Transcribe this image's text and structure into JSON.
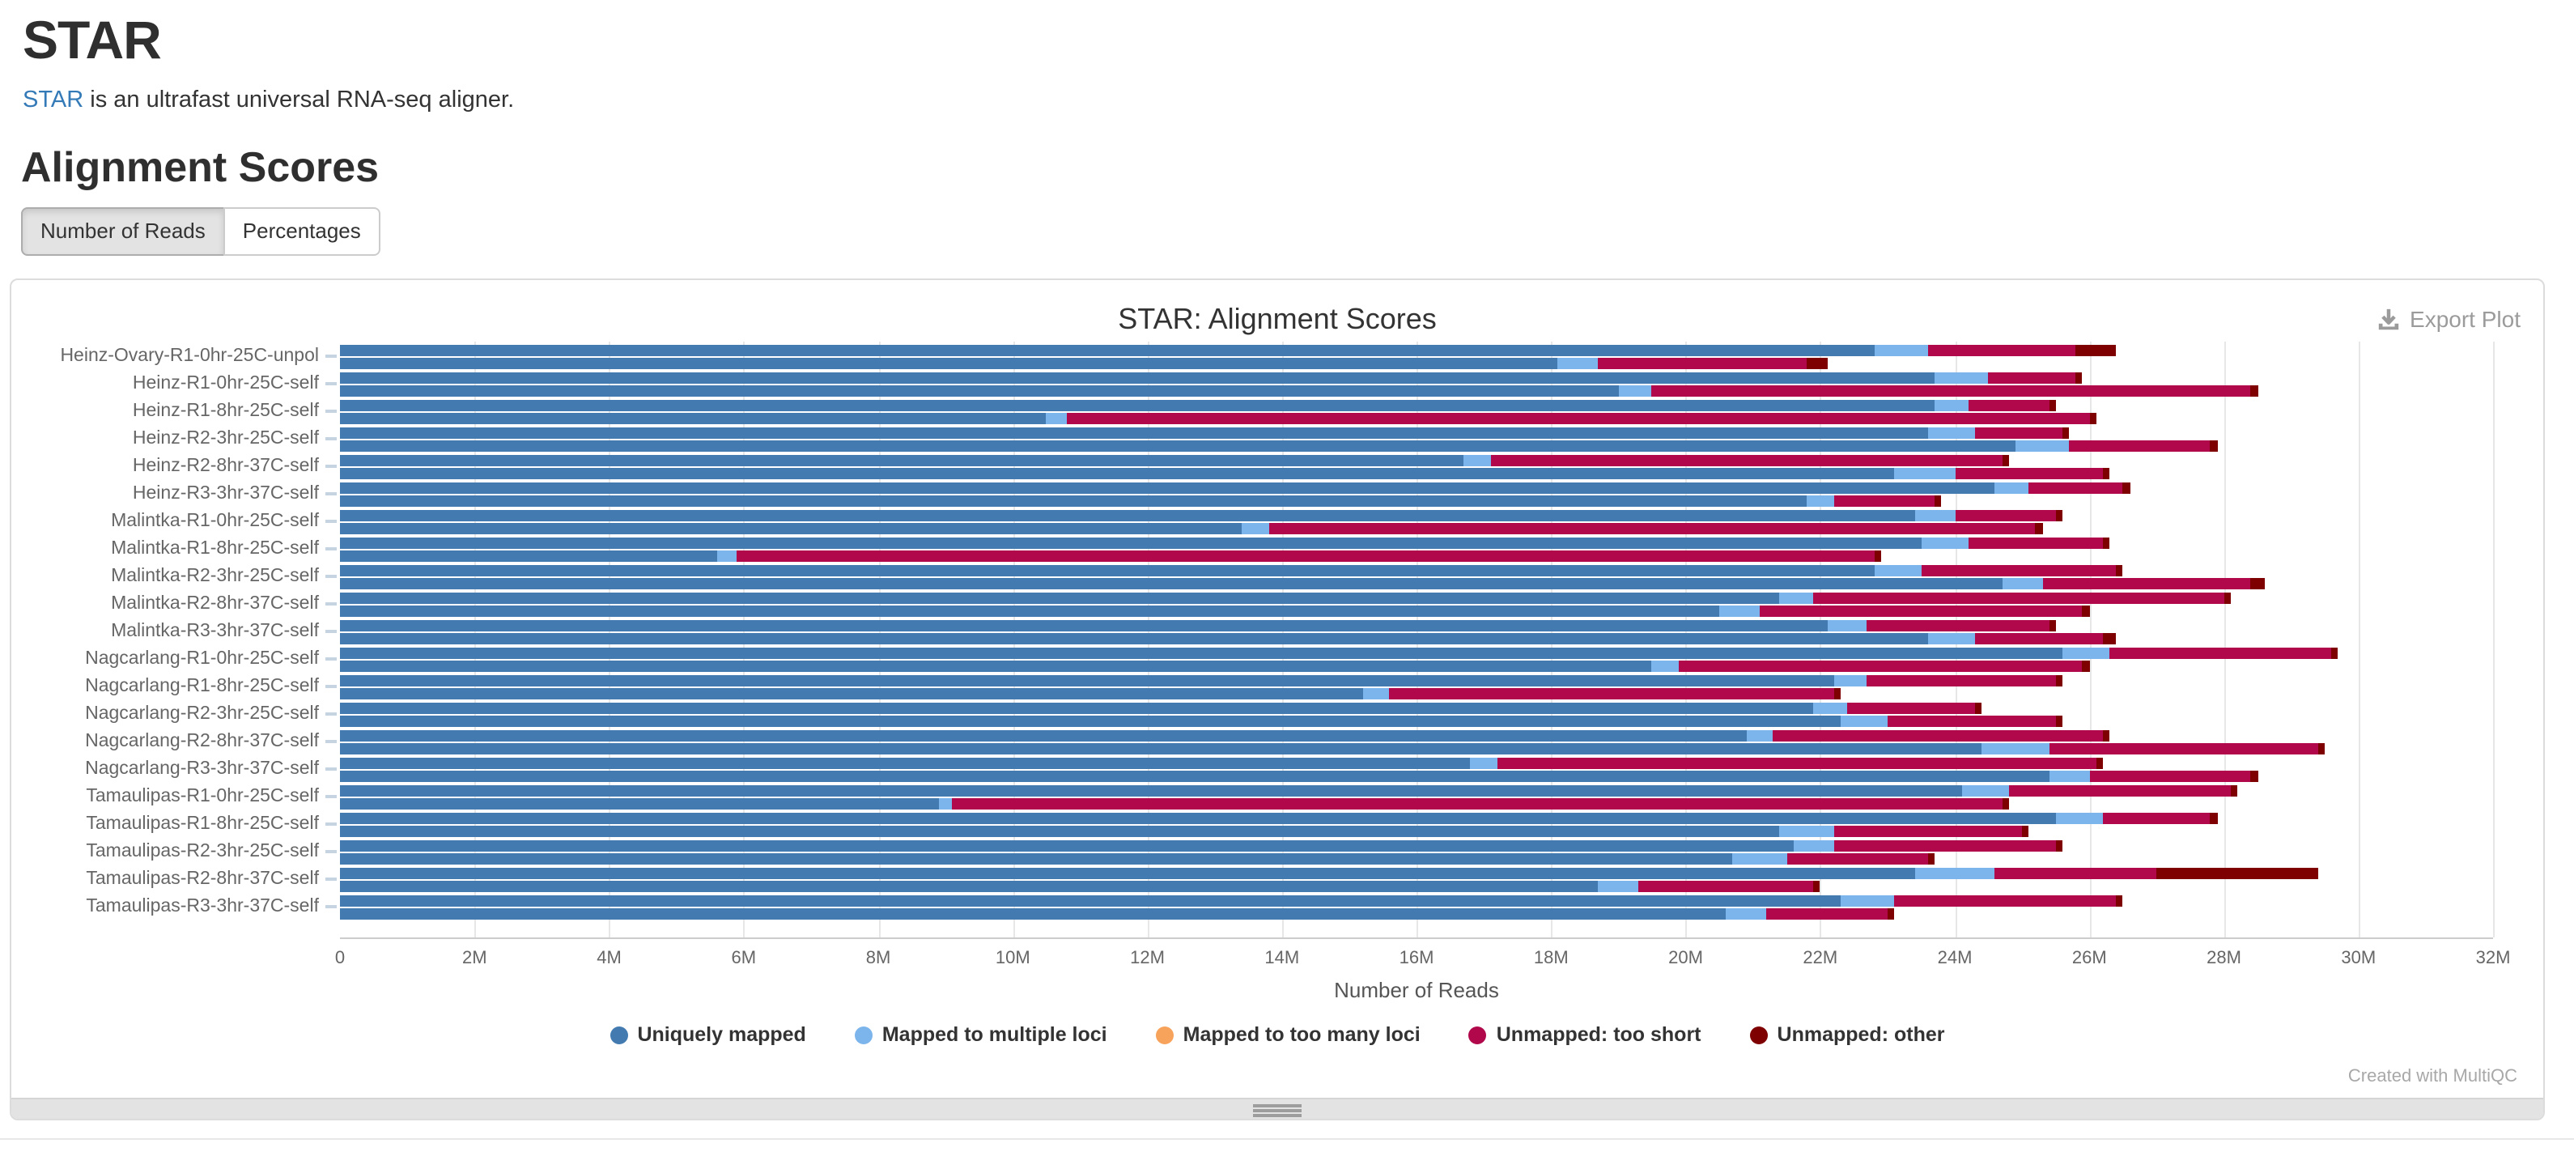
{
  "page": {
    "h1": "STAR",
    "intro_link_text": "STAR",
    "intro_rest": " is an ultrafast universal RNA-seq aligner.",
    "section_title": "Alignment Scores",
    "buttons": {
      "number_of_reads": "Number of Reads",
      "percentages": "Percentages",
      "active": "Number of Reads"
    }
  },
  "plot": {
    "title": "STAR: Alignment Scores",
    "export_label": "Export Plot",
    "watermark": "Created with MultiQC",
    "xlabel": "Number of Reads"
  },
  "chart_data": {
    "type": "bar",
    "orientation": "horizontal",
    "stacked": true,
    "bars_per_category": 2,
    "title": "STAR: Alignment Scores",
    "xlabel": "Number of Reads",
    "x_unit": "millions of reads",
    "xlim": [
      0,
      32
    ],
    "grid": true,
    "legend_position": "bottom",
    "x_tick_values": [
      0,
      2,
      4,
      6,
      8,
      10,
      12,
      14,
      16,
      18,
      20,
      22,
      24,
      26,
      28,
      30,
      32
    ],
    "x_tick_labels": [
      "0",
      "2M",
      "4M",
      "6M",
      "8M",
      "10M",
      "12M",
      "14M",
      "16M",
      "18M",
      "20M",
      "22M",
      "24M",
      "26M",
      "28M",
      "30M",
      "32M"
    ],
    "series_names": [
      "Uniquely mapped",
      "Mapped to multiple loci",
      "Mapped to too many loci",
      "Unmapped: too short",
      "Unmapped: other"
    ],
    "series_colors": [
      "#437bb1",
      "#7cb5ec",
      "#f7a35c",
      "#b1084c",
      "#7f0000"
    ],
    "categories": [
      "Heinz-Ovary-R1-0hr-25C-unpol",
      "Heinz-R1-0hr-25C-self",
      "Heinz-R1-8hr-25C-self",
      "Heinz-R2-3hr-25C-self",
      "Heinz-R2-8hr-37C-self",
      "Heinz-R3-3hr-37C-self",
      "Malintka-R1-0hr-25C-self",
      "Malintka-R1-8hr-25C-self",
      "Malintka-R2-3hr-25C-self",
      "Malintka-R2-8hr-37C-self",
      "Malintka-R3-3hr-37C-self",
      "Nagcarlang-R1-0hr-25C-self",
      "Nagcarlang-R1-8hr-25C-self",
      "Nagcarlang-R2-3hr-25C-self",
      "Nagcarlang-R2-8hr-37C-self",
      "Nagcarlang-R3-3hr-37C-self",
      "Tamaulipas-R1-0hr-25C-self",
      "Tamaulipas-R1-8hr-25C-self",
      "Tamaulipas-R2-3hr-25C-self",
      "Tamaulipas-R2-8hr-37C-self",
      "Tamaulipas-R3-3hr-37C-self"
    ],
    "values_millions": [
      [
        [
          22.8,
          0.8,
          0,
          2.2,
          0.6
        ],
        [
          18.1,
          0.6,
          0,
          3.1,
          0.3
        ]
      ],
      [
        [
          23.7,
          0.8,
          0,
          1.3,
          0.1
        ],
        [
          19.0,
          0.5,
          0,
          8.9,
          0.1
        ]
      ],
      [
        [
          23.7,
          0.5,
          0,
          1.2,
          0.1
        ],
        [
          10.5,
          0.3,
          0,
          15.2,
          0.1
        ]
      ],
      [
        [
          23.6,
          0.7,
          0,
          1.3,
          0.1
        ],
        [
          24.9,
          0.8,
          0,
          2.1,
          0.1
        ]
      ],
      [
        [
          16.7,
          0.4,
          0,
          7.6,
          0.1
        ],
        [
          23.1,
          0.9,
          0,
          2.2,
          0.1
        ]
      ],
      [
        [
          24.6,
          0.5,
          0,
          1.4,
          0.1
        ],
        [
          21.8,
          0.4,
          0,
          1.5,
          0.1
        ]
      ],
      [
        [
          23.4,
          0.6,
          0,
          1.5,
          0.1
        ],
        [
          13.4,
          0.4,
          0,
          11.4,
          0.1
        ]
      ],
      [
        [
          23.5,
          0.7,
          0,
          2.0,
          0.1
        ],
        [
          5.6,
          0.3,
          0,
          16.9,
          0.1
        ]
      ],
      [
        [
          22.8,
          0.7,
          0,
          2.9,
          0.1
        ],
        [
          24.7,
          0.6,
          0,
          3.1,
          0.2
        ]
      ],
      [
        [
          21.4,
          0.5,
          0,
          6.1,
          0.1
        ],
        [
          20.5,
          0.6,
          0,
          4.8,
          0.1
        ]
      ],
      [
        [
          22.1,
          0.6,
          0,
          2.7,
          0.1
        ],
        [
          23.6,
          0.7,
          0,
          1.9,
          0.2
        ]
      ],
      [
        [
          25.6,
          0.7,
          0,
          3.3,
          0.1
        ],
        [
          19.5,
          0.4,
          0,
          6.0,
          0.1
        ]
      ],
      [
        [
          22.2,
          0.5,
          0,
          2.8,
          0.1
        ],
        [
          15.2,
          0.4,
          0,
          6.6,
          0.1
        ]
      ],
      [
        [
          21.9,
          0.5,
          0,
          1.9,
          0.1
        ],
        [
          22.3,
          0.7,
          0,
          2.5,
          0.1
        ]
      ],
      [
        [
          20.9,
          0.4,
          0,
          4.9,
          0.1
        ],
        [
          24.4,
          1.0,
          0,
          4.0,
          0.1
        ]
      ],
      [
        [
          16.8,
          0.4,
          0,
          8.9,
          0.1
        ],
        [
          25.4,
          0.6,
          0,
          2.4,
          0.1
        ]
      ],
      [
        [
          24.1,
          0.7,
          0,
          3.3,
          0.1
        ],
        [
          8.9,
          0.2,
          0,
          15.6,
          0.1
        ]
      ],
      [
        [
          25.5,
          0.7,
          0,
          1.6,
          0.1
        ],
        [
          21.4,
          0.8,
          0,
          2.8,
          0.1
        ]
      ],
      [
        [
          21.6,
          0.6,
          0,
          3.3,
          0.1
        ],
        [
          20.7,
          0.8,
          0,
          2.1,
          0.1
        ]
      ],
      [
        [
          23.4,
          1.2,
          0,
          2.4,
          2.4
        ],
        [
          18.7,
          0.6,
          0,
          2.6,
          0.1
        ]
      ],
      [
        [
          22.3,
          0.8,
          0,
          3.3,
          0.1
        ],
        [
          20.6,
          0.6,
          0,
          1.8,
          0.1
        ]
      ]
    ]
  }
}
